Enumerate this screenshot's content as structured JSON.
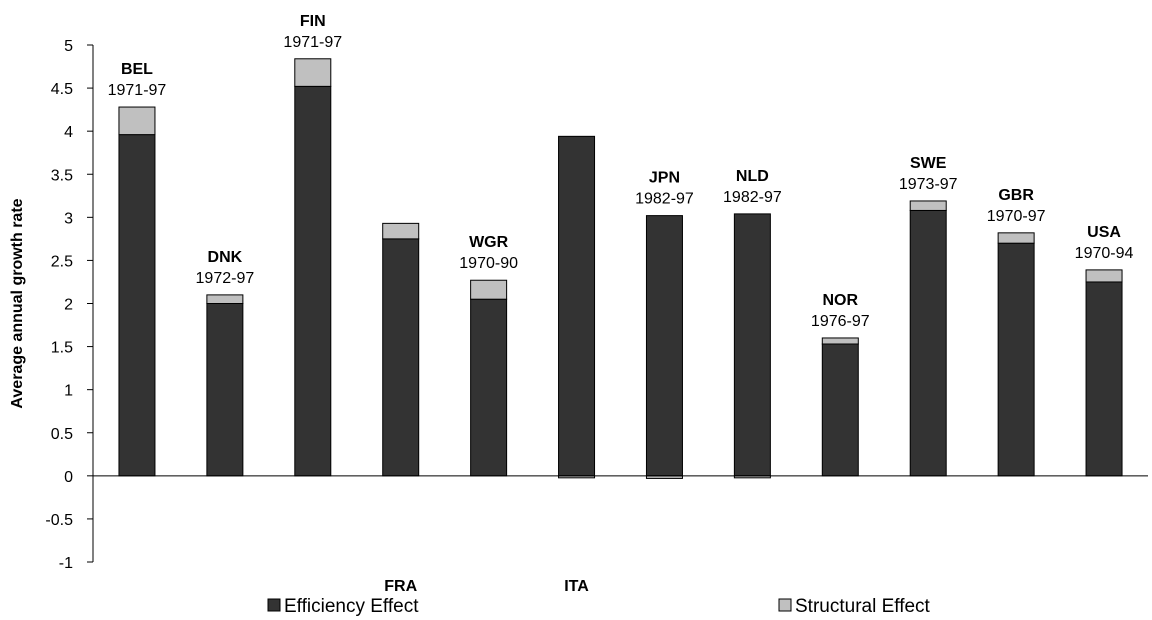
{
  "chart_data": {
    "type": "bar",
    "stacked": true,
    "categories": [
      "BEL",
      "DNK",
      "FIN",
      "FRA",
      "WGR",
      "ITA",
      "JPN",
      "NLD",
      "NOR",
      "SWE",
      "GBR",
      "USA"
    ],
    "periods": [
      "1971-97",
      "1972-97",
      "1971-97",
      "",
      "1970-90",
      "",
      "1982-97",
      "1982-97",
      "1976-97",
      "1973-97",
      "1970-97",
      "1970-94"
    ],
    "series": [
      {
        "name": "Efficiency Effect",
        "color": "#333333",
        "values": [
          3.96,
          2.0,
          4.52,
          2.75,
          2.05,
          3.94,
          3.02,
          3.04,
          1.53,
          3.08,
          2.7,
          2.25
        ]
      },
      {
        "name": "Structural Effect",
        "color": "#c0c0c0",
        "values": [
          0.32,
          0.1,
          0.32,
          0.18,
          0.22,
          -0.01,
          -0.03,
          -0.01,
          0.07,
          0.11,
          0.12,
          0.14
        ]
      }
    ],
    "ylabel": "Average annual growth rate",
    "xlabel": "",
    "ylim": [
      -1,
      5
    ],
    "yticks": [
      "-1",
      "-0.5",
      "0",
      "0.5",
      "1",
      "1.5",
      "2",
      "2.5",
      "3",
      "3.5",
      "4",
      "4.5",
      "5"
    ],
    "legend_position": "bottom",
    "grid": false
  }
}
